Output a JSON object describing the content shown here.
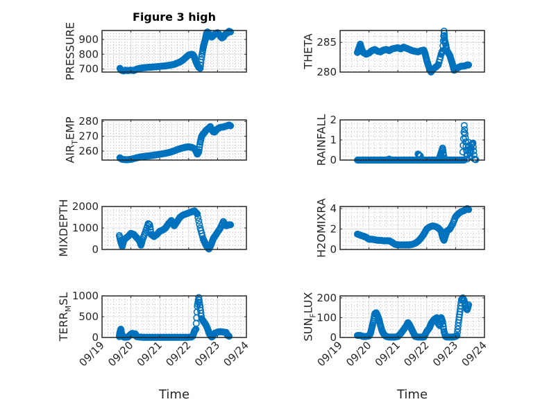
{
  "chart_data": [
    {
      "type": "scatter",
      "title": "Figure 3 high",
      "xlabel": "",
      "ylabel": "PRESSURE",
      "ylabel_sub": null,
      "xlim": [
        "09/19",
        "09/24"
      ],
      "ylim": [
        680,
        960
      ],
      "yticks": [
        700,
        800,
        900
      ],
      "xticks": [
        "09/19",
        "09/20",
        "09/21",
        "09/22",
        "09/23",
        "09/24"
      ],
      "show_xticklabels": false,
      "grid": true,
      "x_days": [
        0.62,
        0.65,
        0.7,
        0.75,
        0.8,
        0.9,
        1.0,
        1.1,
        1.2,
        1.3,
        1.4,
        1.5,
        1.6,
        1.7,
        1.8,
        1.9,
        2.0,
        2.1,
        2.2,
        2.3,
        2.4,
        2.5,
        2.6,
        2.7,
        2.8,
        2.9,
        3.0,
        3.1,
        3.15,
        3.2,
        3.25,
        3.3,
        3.35,
        3.4,
        3.45,
        3.5,
        3.52,
        3.55,
        3.58,
        3.6,
        3.62,
        3.65,
        3.68,
        3.7,
        3.75,
        3.8,
        3.85,
        3.9,
        3.95,
        4.0,
        4.05,
        4.1,
        4.15,
        4.2,
        4.25,
        4.3,
        4.35,
        4.4,
        4.45
      ],
      "values": [
        705,
        695,
        690,
        688,
        692,
        690,
        693,
        690,
        700,
        705,
        708,
        710,
        712,
        713,
        715,
        716,
        718,
        720,
        722,
        725,
        728,
        732,
        740,
        748,
        760,
        778,
        795,
        800,
        797,
        780,
        750,
        730,
        712,
        705,
        785,
        840,
        860,
        880,
        900,
        920,
        940,
        950,
        945,
        935,
        920,
        915,
        925,
        935,
        940,
        945,
        935,
        920,
        910,
        915,
        930,
        940,
        945,
        955,
        950
      ]
    },
    {
      "type": "scatter",
      "title": "",
      "xlabel": "",
      "ylabel": "THETA",
      "xlim": [
        "09/19",
        "09/24"
      ],
      "ylim": [
        280,
        287
      ],
      "yticks": [
        280,
        285
      ],
      "xticks": [
        "09/19",
        "09/20",
        "09/21",
        "09/22",
        "09/23",
        "09/24"
      ],
      "show_xticklabels": false,
      "grid": true,
      "x_days": [
        0.6,
        0.65,
        0.7,
        0.75,
        0.8,
        0.9,
        1.0,
        1.1,
        1.2,
        1.3,
        1.4,
        1.5,
        1.6,
        1.7,
        1.8,
        1.9,
        2.0,
        2.1,
        2.2,
        2.3,
        2.4,
        2.5,
        2.6,
        2.7,
        2.8,
        2.9,
        2.95,
        3.0,
        3.05,
        3.1,
        3.15,
        3.2,
        3.3,
        3.4,
        3.5,
        3.55,
        3.6,
        3.62,
        3.65,
        3.7,
        3.75,
        3.8,
        3.85,
        3.9,
        3.95,
        4.0,
        4.05,
        4.1,
        4.2,
        4.3,
        4.4,
        4.45
      ],
      "values": [
        283.3,
        284.0,
        284.7,
        283.8,
        283.3,
        283.0,
        283.2,
        283.6,
        283.8,
        283.5,
        283.4,
        283.7,
        283.8,
        283.6,
        283.9,
        284.0,
        284.1,
        283.9,
        284.2,
        284.0,
        283.8,
        283.6,
        283.5,
        283.4,
        283.6,
        283.7,
        283.0,
        282.0,
        281.2,
        280.5,
        280.0,
        280.4,
        280.8,
        281.2,
        283.0,
        283.6,
        286.9,
        285.4,
        284.8,
        283.6,
        283.2,
        282.8,
        282.0,
        281.2,
        280.3,
        280.5,
        280.6,
        280.8,
        281.0,
        281.0,
        281.2,
        281.2
      ]
    },
    {
      "type": "scatter",
      "title": "",
      "xlabel": "",
      "ylabel": "AIR_TEMP",
      "ylabel_main": "AIR",
      "ylabel_sub": "T",
      "ylabel_rest": "EMP",
      "xlim": [
        "09/19",
        "09/24"
      ],
      "ylim": [
        254,
        281
      ],
      "yticks": [
        260,
        270,
        280
      ],
      "xticks": [
        "09/19",
        "09/20",
        "09/21",
        "09/22",
        "09/23",
        "09/24"
      ],
      "show_xticklabels": false,
      "grid": true,
      "x_days": [
        0.62,
        0.65,
        0.7,
        0.8,
        0.9,
        1.0,
        1.1,
        1.2,
        1.3,
        1.4,
        1.5,
        1.6,
        1.7,
        1.8,
        1.9,
        2.0,
        2.1,
        2.2,
        2.3,
        2.4,
        2.5,
        2.6,
        2.7,
        2.8,
        2.9,
        3.0,
        3.1,
        3.2,
        3.25,
        3.3,
        3.35,
        3.4,
        3.45,
        3.5,
        3.55,
        3.6,
        3.7,
        3.75,
        3.8,
        3.85,
        3.9,
        3.95,
        4.0,
        4.05,
        4.1,
        4.2,
        4.3,
        4.4,
        4.45
      ],
      "values": [
        255.5,
        255.0,
        254.5,
        254.3,
        254.3,
        254.5,
        255.0,
        255.5,
        256.0,
        256.3,
        256.6,
        256.8,
        257.0,
        257.3,
        257.6,
        257.9,
        258.2,
        258.6,
        259.0,
        259.5,
        260.2,
        261.0,
        261.6,
        262.2,
        262.7,
        262.9,
        262.6,
        261.8,
        260.0,
        258.0,
        259.5,
        266.0,
        270.0,
        271.5,
        272.5,
        274.0,
        275.5,
        276.5,
        274.5,
        273.0,
        272.8,
        274.0,
        275.0,
        275.5,
        276.0,
        276.2,
        276.8,
        277.5,
        277.0
      ]
    },
    {
      "type": "scatter",
      "title": "",
      "xlabel": "",
      "ylabel": "RAINFALL",
      "xlim": [
        "09/19",
        "09/24"
      ],
      "ylim": [
        0,
        2
      ],
      "yticks": [
        0,
        1,
        2
      ],
      "xticks": [
        "09/19",
        "09/20",
        "09/21",
        "09/22",
        "09/23",
        "09/24"
      ],
      "show_xticklabels": false,
      "grid": true,
      "x_days": [
        0.6,
        0.7,
        0.8,
        0.9,
        1.0,
        1.1,
        1.2,
        1.3,
        1.4,
        1.5,
        1.6,
        1.7,
        1.8,
        1.9,
        2.0,
        2.1,
        2.2,
        2.3,
        2.4,
        2.5,
        2.6,
        2.7,
        2.8,
        2.9,
        3.0,
        3.1,
        3.2,
        3.3,
        3.4,
        3.5,
        3.6,
        3.7,
        3.8,
        3.9,
        4.0,
        4.1,
        4.2,
        4.3,
        1.7,
        2.7,
        2.78,
        3.45,
        3.5,
        3.55,
        3.6,
        3.65,
        4.25,
        4.3,
        4.35,
        4.4,
        4.45,
        4.5,
        4.55,
        4.6,
        4.65,
        4.7
      ],
      "values": [
        0,
        0,
        0,
        0,
        0,
        0,
        0,
        0,
        0,
        0,
        0,
        0,
        0,
        0,
        0,
        0,
        0,
        0,
        0,
        0,
        0,
        0,
        0,
        0,
        0,
        0,
        0,
        0,
        0,
        0,
        0,
        0,
        0,
        0,
        0,
        0,
        0,
        0,
        0.05,
        0.3,
        0.2,
        0.15,
        0.35,
        0.6,
        0.1,
        0.05,
        0.4,
        1.72,
        0.9,
        0.05,
        0.88,
        0.2,
        0.75,
        0.85,
        0.05,
        0.02
      ]
    },
    {
      "type": "scatter",
      "title": "",
      "xlabel": "",
      "ylabel": "MIXDEPTH",
      "xlim": [
        "09/19",
        "09/24"
      ],
      "ylim": [
        0,
        2000
      ],
      "yticks": [
        0,
        1000,
        2000
      ],
      "xticks": [
        "09/19",
        "09/20",
        "09/21",
        "09/22",
        "09/23",
        "09/24"
      ],
      "show_xticklabels": false,
      "grid": true,
      "x_days": [
        0.6,
        0.65,
        0.7,
        0.75,
        0.8,
        0.9,
        1.0,
        1.1,
        1.2,
        1.3,
        1.35,
        1.4,
        1.5,
        1.6,
        1.65,
        1.7,
        1.8,
        1.9,
        2.0,
        2.1,
        2.2,
        2.3,
        2.4,
        2.5,
        2.6,
        2.7,
        2.8,
        2.9,
        3.0,
        3.1,
        3.2,
        3.3,
        3.4,
        3.5,
        3.55,
        3.6,
        3.65,
        3.7,
        3.75,
        3.8,
        3.85,
        3.9,
        4.0,
        4.1,
        4.2,
        4.3,
        4.4,
        4.45
      ],
      "values": [
        650,
        350,
        150,
        400,
        500,
        600,
        750,
        700,
        550,
        400,
        200,
        450,
        800,
        1200,
        1150,
        700,
        600,
        700,
        850,
        900,
        1000,
        1200,
        1350,
        1100,
        1300,
        1500,
        1600,
        1650,
        1700,
        1750,
        1800,
        1650,
        1000,
        500,
        350,
        200,
        100,
        20,
        150,
        300,
        500,
        600,
        800,
        1000,
        1300,
        1100,
        1150,
        1150
      ]
    },
    {
      "type": "scatter",
      "title": "",
      "xlabel": "",
      "ylabel": "H2OMIXRA",
      "xlim": [
        "09/19",
        "09/24"
      ],
      "ylim": [
        0,
        4.2
      ],
      "yticks": [
        0,
        2,
        4
      ],
      "xticks": [
        "09/19",
        "09/20",
        "09/21",
        "09/22",
        "09/23",
        "09/24"
      ],
      "show_xticklabels": false,
      "grid": true,
      "x_days": [
        0.6,
        0.7,
        0.8,
        0.9,
        1.0,
        1.1,
        1.2,
        1.3,
        1.4,
        1.5,
        1.6,
        1.7,
        1.8,
        1.9,
        2.0,
        2.1,
        2.2,
        2.3,
        2.4,
        2.5,
        2.6,
        2.7,
        2.8,
        2.9,
        3.0,
        3.1,
        3.2,
        3.3,
        3.4,
        3.5,
        3.55,
        3.6,
        3.65,
        3.7,
        3.8,
        3.9,
        4.0,
        4.1,
        4.2,
        4.3,
        4.4,
        4.45
      ],
      "values": [
        1.5,
        1.4,
        1.3,
        1.2,
        1.0,
        1.0,
        0.95,
        0.9,
        0.9,
        0.85,
        0.85,
        0.85,
        0.7,
        0.5,
        0.45,
        0.45,
        0.45,
        0.45,
        0.45,
        0.5,
        0.6,
        0.8,
        1.1,
        1.5,
        2.0,
        2.2,
        2.3,
        2.25,
        2.1,
        1.8,
        1.2,
        0.9,
        1.4,
        1.8,
        2.0,
        2.5,
        3.2,
        3.5,
        3.7,
        3.8,
        4.0,
        3.9
      ]
    },
    {
      "type": "scatter",
      "title": "",
      "xlabel": "Time",
      "ylabel": "TERR_MSL",
      "ylabel_main": "TERR",
      "ylabel_sub": "M",
      "ylabel_rest": "SL",
      "xlim": [
        "09/19",
        "09/24"
      ],
      "ylim": [
        0,
        1000
      ],
      "yticks": [
        0,
        500,
        1000
      ],
      "xticks": [
        "09/19",
        "09/20",
        "09/21",
        "09/22",
        "09/23",
        "09/24"
      ],
      "show_xticklabels": true,
      "grid": true,
      "x_days": [
        0.6,
        0.62,
        0.65,
        0.68,
        0.7,
        0.75,
        0.8,
        0.9,
        1.0,
        1.05,
        1.1,
        1.15,
        1.2,
        1.3,
        1.4,
        1.5,
        1.6,
        1.7,
        1.8,
        1.9,
        2.0,
        2.1,
        2.2,
        2.3,
        2.4,
        2.5,
        2.6,
        2.7,
        2.8,
        2.9,
        3.0,
        3.1,
        3.15,
        3.2,
        3.25,
        3.3,
        3.35,
        3.4,
        3.45,
        3.5,
        3.55,
        3.6,
        3.65,
        3.7,
        3.75,
        3.8,
        3.85,
        3.9,
        4.0,
        4.1,
        4.2,
        4.3,
        4.35,
        4.4
      ],
      "values": [
        20,
        120,
        200,
        80,
        30,
        10,
        5,
        10,
        80,
        100,
        60,
        90,
        20,
        10,
        5,
        5,
        5,
        5,
        5,
        5,
        5,
        5,
        5,
        5,
        5,
        5,
        5,
        5,
        5,
        5,
        5,
        10,
        40,
        150,
        200,
        750,
        960,
        720,
        450,
        400,
        350,
        300,
        220,
        120,
        50,
        10,
        40,
        100,
        130,
        140,
        130,
        120,
        50,
        30
      ]
    },
    {
      "type": "scatter",
      "title": "",
      "xlabel": "Time",
      "ylabel": "SUN_FLUX",
      "ylabel_main": "SUN",
      "ylabel_sub": "F",
      "ylabel_rest": "LUX",
      "xlim": [
        "09/19",
        "09/24"
      ],
      "ylim": [
        0,
        210
      ],
      "yticks": [
        0,
        100,
        200
      ],
      "xticks": [
        "09/19",
        "09/20",
        "09/21",
        "09/22",
        "09/23",
        "09/24"
      ],
      "show_xticklabels": true,
      "grid": true,
      "x_days": [
        0.6,
        0.7,
        0.8,
        0.9,
        1.0,
        1.05,
        1.1,
        1.15,
        1.2,
        1.25,
        1.3,
        1.35,
        1.4,
        1.45,
        1.5,
        1.55,
        1.6,
        1.7,
        1.8,
        1.9,
        2.0,
        2.1,
        2.2,
        2.3,
        2.35,
        2.4,
        2.45,
        2.5,
        2.55,
        2.6,
        2.7,
        2.8,
        2.9,
        3.0,
        3.1,
        3.15,
        3.2,
        3.25,
        3.3,
        3.35,
        3.4,
        3.45,
        3.5,
        3.55,
        3.6,
        3.65,
        3.7,
        3.8,
        3.9,
        4.0,
        4.05,
        4.1,
        4.15,
        4.2,
        4.25,
        4.3,
        4.35,
        4.4,
        4.45
      ],
      "values": [
        10,
        10,
        5,
        5,
        8,
        20,
        50,
        80,
        120,
        125,
        110,
        90,
        60,
        35,
        20,
        10,
        5,
        2,
        2,
        2,
        5,
        20,
        40,
        60,
        75,
        65,
        50,
        35,
        20,
        5,
        2,
        2,
        2,
        30,
        50,
        70,
        80,
        90,
        95,
        100,
        70,
        60,
        100,
        80,
        30,
        5,
        2,
        2,
        2,
        5,
        10,
        75,
        130,
        190,
        200,
        185,
        150,
        140,
        165
      ]
    }
  ]
}
